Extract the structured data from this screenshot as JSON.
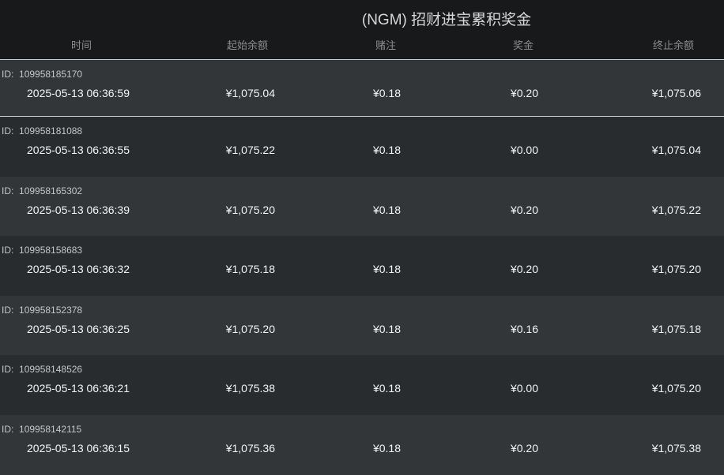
{
  "title": "(NGM) 招财进宝累积奖金",
  "columns": {
    "time": "时间",
    "start_balance": "起始余额",
    "bet": "赌注",
    "prize": "奖金",
    "end_balance": "终止余额"
  },
  "id_prefix": "ID:",
  "rows": [
    {
      "id": "109958185170",
      "time": "2025-05-13 06:36:59",
      "start": "¥1,075.04",
      "bet": "¥0.18",
      "prize": "¥0.20",
      "end": "¥1,075.06"
    },
    {
      "id": "109958181088",
      "time": "2025-05-13 06:36:55",
      "start": "¥1,075.22",
      "bet": "¥0.18",
      "prize": "¥0.00",
      "end": "¥1,075.04"
    },
    {
      "id": "109958165302",
      "time": "2025-05-13 06:36:39",
      "start": "¥1,075.20",
      "bet": "¥0.18",
      "prize": "¥0.20",
      "end": "¥1,075.22"
    },
    {
      "id": "109958158683",
      "time": "2025-05-13 06:36:32",
      "start": "¥1,075.18",
      "bet": "¥0.18",
      "prize": "¥0.20",
      "end": "¥1,075.20"
    },
    {
      "id": "109958152378",
      "time": "2025-05-13 06:36:25",
      "start": "¥1,075.20",
      "bet": "¥0.18",
      "prize": "¥0.16",
      "end": "¥1,075.18"
    },
    {
      "id": "109958148526",
      "time": "2025-05-13 06:36:21",
      "start": "¥1,075.38",
      "bet": "¥0.18",
      "prize": "¥0.00",
      "end": "¥1,075.20"
    },
    {
      "id": "109958142115",
      "time": "2025-05-13 06:36:15",
      "start": "¥1,075.36",
      "bet": "¥0.18",
      "prize": "¥0.20",
      "end": "¥1,075.38"
    }
  ]
}
